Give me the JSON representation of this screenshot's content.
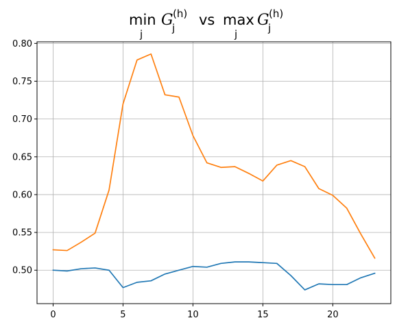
{
  "chart_data": {
    "type": "line",
    "title": {
      "left_op": "min",
      "left_sub": "j",
      "var": "G",
      "var_sub": "j",
      "var_sup": "(h)",
      "connector": "vs",
      "right_op": "max",
      "right_sub": "j"
    },
    "xlabel": "",
    "ylabel": "",
    "grid": true,
    "xlim": [
      -1.15,
      24.15
    ],
    "ylim": [
      0.4558,
      0.8021
    ],
    "xticks": [
      0,
      5,
      10,
      15,
      20
    ],
    "xtick_labels": [
      "0",
      "5",
      "10",
      "15",
      "20"
    ],
    "yticks": [
      0.5,
      0.55,
      0.6,
      0.65,
      0.7,
      0.75,
      0.8
    ],
    "ytick_labels": [
      "0.50",
      "0.55",
      "0.60",
      "0.65",
      "0.70",
      "0.75",
      "0.80"
    ],
    "x": [
      0,
      1,
      2,
      3,
      4,
      5,
      6,
      7,
      8,
      9,
      10,
      11,
      12,
      13,
      14,
      15,
      16,
      17,
      18,
      19,
      20,
      21,
      22,
      23
    ],
    "series": [
      {
        "color": "#1f77b4",
        "values": [
          0.5,
          0.499,
          0.502,
          0.503,
          0.5,
          0.477,
          0.484,
          0.486,
          0.495,
          0.5,
          0.505,
          0.504,
          0.509,
          0.511,
          0.511,
          0.51,
          0.509,
          0.493,
          0.474,
          0.482,
          0.481,
          0.481,
          0.49,
          0.496
        ]
      },
      {
        "color": "#ff7f0e",
        "values": [
          0.527,
          0.526,
          0.537,
          0.549,
          0.606,
          0.72,
          0.778,
          0.786,
          0.732,
          0.729,
          0.678,
          0.642,
          0.636,
          0.637,
          0.628,
          0.618,
          0.639,
          0.645,
          0.637,
          0.608,
          0.599,
          0.582,
          0.548,
          0.516
        ]
      }
    ]
  }
}
